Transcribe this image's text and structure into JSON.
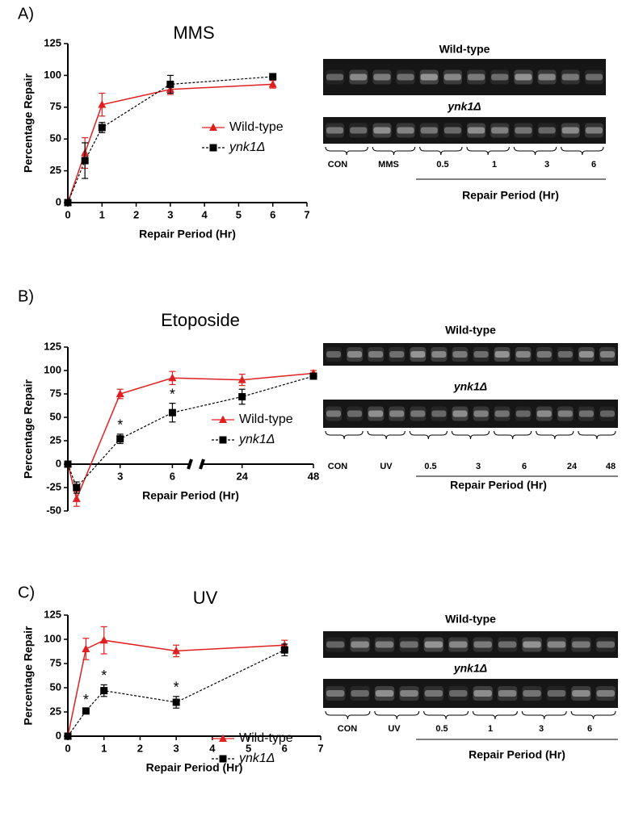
{
  "chart_data": [
    {
      "type": "line",
      "title": "MMS",
      "xlabel": "Repair Period (Hr)",
      "ylabel": "Percentage Repair",
      "x": [
        0,
        0.5,
        1,
        3,
        6
      ],
      "series": [
        {
          "name": "Wild-type",
          "color": "#e02020",
          "line_style": "solid",
          "marker": "triangle",
          "values": [
            0,
            39,
            77,
            89,
            93
          ],
          "errors": [
            0,
            12,
            9,
            4,
            3
          ]
        },
        {
          "name": "ynk1Δ",
          "color": "#000000",
          "line_style": "dashed",
          "marker": "square",
          "italic": true,
          "values": [
            0,
            33,
            59,
            93,
            99
          ],
          "errors": [
            0,
            14,
            4,
            7,
            1
          ]
        }
      ],
      "xlim": [
        0,
        7
      ],
      "xticks": [
        0,
        1,
        2,
        3,
        4,
        5,
        6,
        7
      ],
      "ylim": [
        0,
        125
      ],
      "yticks": [
        0,
        25,
        50,
        75,
        100,
        125
      ],
      "legend": "right",
      "annotations": []
    },
    {
      "type": "line",
      "title": "Etoposide",
      "xlabel": "Repair Period (Hr)",
      "ylabel": "Percentage Repair",
      "x": [
        0,
        0.5,
        3,
        6,
        24,
        48
      ],
      "series": [
        {
          "name": "Wild-type",
          "color": "#e02020",
          "line_style": "solid",
          "marker": "triangle",
          "values": [
            0,
            -37,
            75,
            92,
            90,
            97
          ],
          "errors": [
            0,
            8,
            5,
            7,
            6,
            3
          ]
        },
        {
          "name": "ynk1Δ",
          "color": "#000000",
          "line_style": "dashed",
          "marker": "square",
          "italic": true,
          "values": [
            0,
            -25,
            27,
            55,
            72,
            94
          ],
          "errors": [
            0,
            6,
            5,
            10,
            8,
            3
          ]
        }
      ],
      "xlim": [
        0,
        48
      ],
      "xbreak": [
        7,
        10.5
      ],
      "xticks": [
        3,
        6,
        24,
        48
      ],
      "ylim": [
        -50,
        125
      ],
      "yticks": [
        -50,
        -25,
        0,
        25,
        50,
        75,
        100,
        125
      ],
      "legend": "right",
      "annotations": [
        {
          "text": "*",
          "x": 3
        },
        {
          "text": "*",
          "x": 6
        }
      ]
    },
    {
      "type": "line",
      "title": "UV",
      "xlabel": "Repair Period (Hr)",
      "ylabel": "Percentage Repair",
      "x": [
        0,
        0.5,
        1,
        3,
        6
      ],
      "series": [
        {
          "name": "Wild-type",
          "color": "#e02020",
          "line_style": "solid",
          "marker": "triangle",
          "values": [
            0,
            90,
            99,
            88,
            94
          ],
          "errors": [
            0,
            11,
            14,
            6,
            5
          ]
        },
        {
          "name": "ynk1Δ",
          "color": "#000000",
          "line_style": "dashed",
          "marker": "square",
          "italic": true,
          "values": [
            0,
            26,
            47,
            35,
            89
          ],
          "errors": [
            0,
            2,
            6,
            6,
            6
          ]
        }
      ],
      "xlim": [
        0,
        7
      ],
      "xticks": [
        0,
        1,
        2,
        3,
        4,
        5,
        6,
        7
      ],
      "ylim": [
        0,
        125
      ],
      "yticks": [
        0,
        25,
        50,
        75,
        100,
        125
      ],
      "legend": "right",
      "annotations": [
        {
          "text": "*",
          "x": 0.5
        },
        {
          "text": "*",
          "x": 1
        },
        {
          "text": "*",
          "x": 3
        }
      ]
    }
  ],
  "panels": [
    {
      "label": "A)",
      "gel": {
        "top": "Wild-type",
        "bottom": "ynk1Δ",
        "lanes": [
          "CON",
          "MMS",
          "0.5",
          "1",
          "3",
          "6"
        ],
        "xlabel": "Repair Period (Hr)"
      }
    },
    {
      "label": "B)",
      "gel": {
        "top": "Wild-type",
        "bottom": "ynk1Δ",
        "lanes": [
          "CON",
          "UV",
          "0.5",
          "3",
          "6",
          "24",
          "48"
        ],
        "xlabel": "Repair Period (Hr)"
      }
    },
    {
      "label": "C)",
      "gel": {
        "top": "Wild-type",
        "bottom": "ynk1Δ",
        "lanes": [
          "CON",
          "UV",
          "0.5",
          "1",
          "3",
          "6"
        ],
        "xlabel": "Repair Period (Hr)"
      }
    }
  ]
}
